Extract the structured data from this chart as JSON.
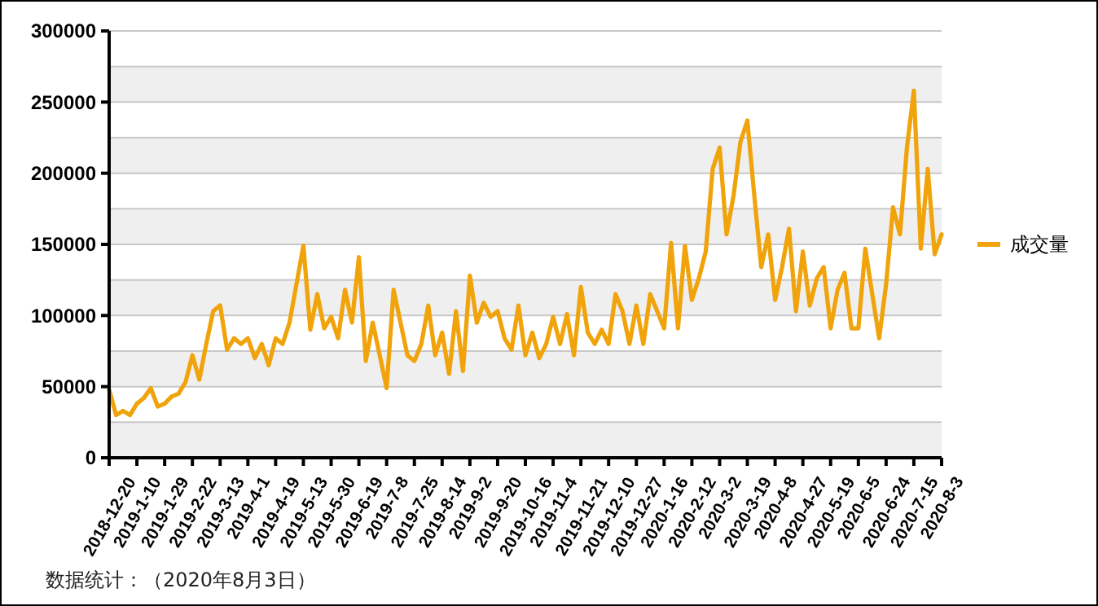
{
  "chart_data": {
    "type": "line",
    "categories": [
      "2018-12-20",
      null,
      null,
      null,
      "2019-1-10",
      null,
      null,
      null,
      "2019-1-29",
      null,
      null,
      null,
      "2019-2-22",
      null,
      null,
      null,
      "2019-3-13",
      null,
      null,
      null,
      "2019-4-1",
      null,
      null,
      null,
      "2019-4-19",
      null,
      null,
      null,
      "2019-5-13",
      null,
      null,
      null,
      "2019-5-30",
      null,
      null,
      null,
      "2019-6-19",
      null,
      null,
      null,
      "2019-7-8",
      null,
      null,
      null,
      "2019-7-25",
      null,
      null,
      null,
      "2019-8-14",
      null,
      null,
      null,
      "2019-9-2",
      null,
      null,
      null,
      "2019-9-20",
      null,
      null,
      null,
      "2019-10-16",
      null,
      null,
      null,
      "2019-11-4",
      null,
      null,
      null,
      "2019-11-21",
      null,
      null,
      null,
      "2019-12-10",
      null,
      null,
      null,
      "2019-12-27",
      null,
      null,
      null,
      "2020-1-16",
      null,
      null,
      null,
      "2020-2-12",
      null,
      null,
      null,
      "2020-3-2",
      null,
      null,
      null,
      "2020-3-19",
      null,
      null,
      null,
      "2020-4-8",
      null,
      null,
      null,
      "2020-4-27",
      null,
      null,
      null,
      "2020-5-19",
      null,
      null,
      null,
      "2020-6-5",
      null,
      null,
      null,
      "2020-6-24",
      null,
      null,
      null,
      "2020-7-15",
      null,
      null,
      null,
      "2020-8-3"
    ],
    "series": [
      {
        "name": "成交量",
        "color": "#f0a30a",
        "values": [
          48000,
          30000,
          33000,
          30000,
          38000,
          42000,
          49000,
          36000,
          38000,
          43000,
          45000,
          53000,
          72000,
          55000,
          80000,
          103000,
          107000,
          76000,
          84000,
          80000,
          84000,
          70000,
          80000,
          65000,
          84000,
          80000,
          95000,
          122000,
          149000,
          90000,
          115000,
          91000,
          99000,
          84000,
          118000,
          95000,
          141000,
          68000,
          95000,
          72000,
          49000,
          118000,
          95000,
          72000,
          68000,
          80000,
          107000,
          72000,
          88000,
          59000,
          103000,
          61000,
          128000,
          95000,
          109000,
          99000,
          103000,
          84000,
          76000,
          107000,
          72000,
          88000,
          70000,
          80000,
          99000,
          80000,
          101000,
          72000,
          120000,
          88000,
          80000,
          90000,
          80000,
          115000,
          103000,
          80000,
          107000,
          80000,
          115000,
          103000,
          91000,
          151000,
          91000,
          149000,
          111000,
          126000,
          145000,
          203000,
          218000,
          157000,
          184000,
          222000,
          237000,
          184000,
          134000,
          157000,
          111000,
          134000,
          161000,
          103000,
          145000,
          107000,
          126000,
          134000,
          91000,
          118000,
          130000,
          91000,
          91000,
          147000,
          115000,
          84000,
          122000,
          176000,
          157000,
          218000,
          258000,
          147000,
          203000,
          143000,
          157000
        ]
      }
    ],
    "ylim": [
      0,
      300000
    ],
    "yticks": [
      0,
      50000,
      100000,
      150000,
      200000,
      250000,
      300000
    ],
    "bands": [
      {
        "axis": "y",
        "from": 0,
        "to": 25000,
        "color": "#efefef"
      },
      {
        "axis": "y",
        "from": 50000,
        "to": 75000,
        "color": "#efefef"
      },
      {
        "axis": "y",
        "from": 100000,
        "to": 125000,
        "color": "#efefef"
      },
      {
        "axis": "y",
        "from": 150000,
        "to": 175000,
        "color": "#efefef"
      },
      {
        "axis": "y",
        "from": 200000,
        "to": 225000,
        "color": "#efefef"
      },
      {
        "axis": "y",
        "from": 250000,
        "to": 275000,
        "color": "#efefef"
      }
    ],
    "grid": "y",
    "legend": "right",
    "marker": "none",
    "line_style": "solid",
    "annotations": [
      "数据统计：（2020年8月3日）"
    ]
  }
}
